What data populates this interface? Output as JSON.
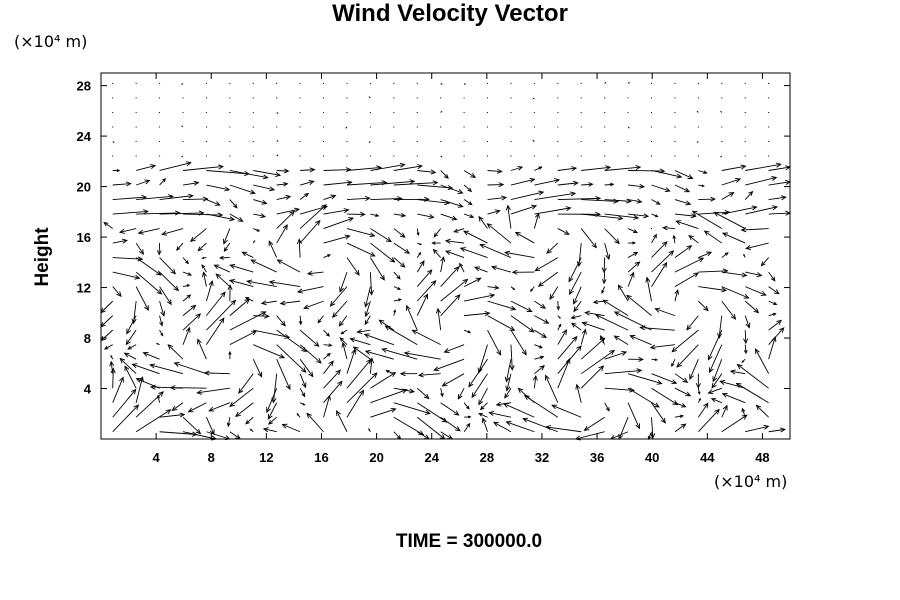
{
  "chart_data": {
    "type": "vector field",
    "title": "Wind Velocity Vector",
    "ylabel": "Height",
    "x_unit": "(×10⁴ m)",
    "y_unit": "(×10⁴ m)",
    "xlim": [
      0,
      50
    ],
    "ylim": [
      0,
      29
    ],
    "x_ticks": [
      4,
      8,
      12,
      16,
      20,
      24,
      28,
      32,
      36,
      40,
      44,
      48
    ],
    "y_ticks": [
      4,
      8,
      12,
      16,
      20,
      24,
      28
    ],
    "grid_dx": 1.7,
    "grid_dy": 1.15,
    "vector_color": "#000000",
    "footer": "TIME = 300000.0"
  }
}
